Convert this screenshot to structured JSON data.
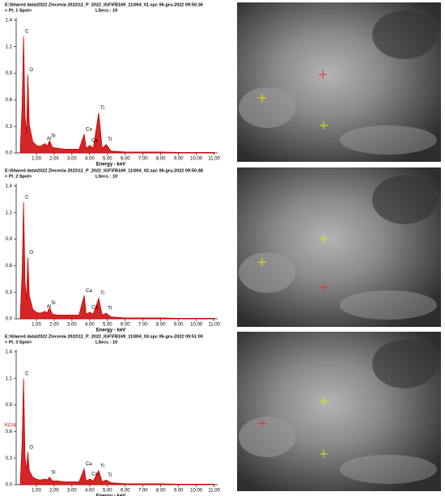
{
  "chart_data": [
    {
      "type": "line",
      "header": "E:\\Shared data\\2022 Zlecenia 2022\\11_P_2022_IGF\\FB169_11\\004_01.spc   06-gru-2022 09:50:36",
      "subheader": "< Pt. 1 Spot>",
      "lsecs": "LSecs : 10",
      "xlabel": "Energy - keV",
      "color": "#cc0000",
      "xlim": [
        0,
        11.2
      ],
      "ylim": [
        0,
        1.45
      ],
      "xticks": [
        {
          "value": 1,
          "label": "1.00"
        },
        {
          "value": 2,
          "label": "2.00"
        },
        {
          "value": 3,
          "label": "3.00"
        },
        {
          "value": 4,
          "label": "4.00"
        },
        {
          "value": 5,
          "label": "5.00"
        },
        {
          "value": 6,
          "label": "6.00"
        },
        {
          "value": 7,
          "label": "7.00"
        },
        {
          "value": 8,
          "label": "8.00"
        },
        {
          "value": 9,
          "label": "9.00"
        },
        {
          "value": 10,
          "label": "10.00"
        },
        {
          "value": 11,
          "label": "11.00"
        }
      ],
      "yticks": [
        {
          "value": 0,
          "label": "0.0"
        },
        {
          "value": 0.285,
          "label": "0.3"
        },
        {
          "value": 0.57,
          "label": "0.6"
        },
        {
          "value": 0.855,
          "label": "0.9"
        },
        {
          "value": 1.14,
          "label": "1.1"
        },
        {
          "value": 1.425,
          "label": "1.4"
        }
      ],
      "x": [
        0.1,
        0.2,
        0.28,
        0.36,
        0.45,
        0.52,
        0.6,
        0.8,
        1.0,
        1.2,
        1.49,
        1.6,
        1.74,
        1.9,
        2.2,
        2.6,
        3.0,
        3.4,
        3.69,
        3.8,
        4.01,
        4.2,
        4.51,
        4.7,
        4.93,
        5.2,
        6,
        7,
        8,
        9,
        10,
        11
      ],
      "values": [
        0.05,
        0.5,
        1.25,
        0.4,
        0.2,
        0.84,
        0.3,
        0.12,
        0.08,
        0.07,
        0.1,
        0.07,
        0.13,
        0.06,
        0.05,
        0.04,
        0.04,
        0.04,
        0.2,
        0.05,
        0.08,
        0.05,
        0.43,
        0.05,
        0.09,
        0.02,
        0.01,
        0.01,
        0.01,
        0.005,
        0.005,
        0.005
      ],
      "annotations": [
        {
          "text": "C",
          "x": 0.28
        },
        {
          "text": "O",
          "x": 0.52
        },
        {
          "text": "Al",
          "x": 1.49
        },
        {
          "text": "Si",
          "x": 1.74
        },
        {
          "text": "Ca",
          "x": 3.69
        },
        {
          "text": "Ca",
          "x": 4.01
        },
        {
          "text": "Ti",
          "x": 4.51
        },
        {
          "text": "Ti",
          "x": 4.93
        }
      ]
    },
    {
      "type": "line",
      "header": "E:\\Shared data\\2022 Zlecenia 2022\\11_P_2022_IGF\\FB169_11\\004_02.spc   06-gru-2022 09:50:48",
      "subheader": "< Pt. 2 Spot>",
      "lsecs": "LSecs : 10",
      "xlabel": "Energy - keV",
      "color": "#cc0000",
      "xlim": [
        0,
        11.2
      ],
      "ylim": [
        0,
        1.45
      ],
      "xticks": [
        {
          "value": 1,
          "label": "1.00"
        },
        {
          "value": 2,
          "label": "2.00"
        },
        {
          "value": 3,
          "label": "3.00"
        },
        {
          "value": 4,
          "label": "4.00"
        },
        {
          "value": 5,
          "label": "5.00"
        },
        {
          "value": 6,
          "label": "6.00"
        },
        {
          "value": 7,
          "label": "7.00"
        },
        {
          "value": 8,
          "label": "8.00"
        },
        {
          "value": 9,
          "label": "9.00"
        },
        {
          "value": 10,
          "label": "10.00"
        },
        {
          "value": 11,
          "label": "11.00"
        }
      ],
      "yticks": [
        {
          "value": 0,
          "label": "0.0"
        },
        {
          "value": 0.285,
          "label": "0.3"
        },
        {
          "value": 0.57,
          "label": "0.6"
        },
        {
          "value": 0.855,
          "label": "0.9"
        },
        {
          "value": 1.14,
          "label": "1.1"
        },
        {
          "value": 1.425,
          "label": "1.4"
        }
      ],
      "x": [
        0.1,
        0.2,
        0.28,
        0.36,
        0.45,
        0.52,
        0.6,
        0.8,
        1.0,
        1.2,
        1.49,
        1.6,
        1.74,
        1.9,
        2.2,
        2.6,
        3.0,
        3.4,
        3.69,
        3.8,
        4.01,
        4.2,
        4.51,
        4.7,
        4.93,
        5.2,
        6,
        7,
        8,
        9,
        10,
        11
      ],
      "values": [
        0.05,
        0.5,
        1.25,
        0.4,
        0.2,
        0.66,
        0.25,
        0.1,
        0.07,
        0.06,
        0.08,
        0.06,
        0.12,
        0.05,
        0.04,
        0.04,
        0.04,
        0.04,
        0.25,
        0.05,
        0.07,
        0.05,
        0.22,
        0.04,
        0.06,
        0.02,
        0.01,
        0.01,
        0.01,
        0.005,
        0.005,
        0.005
      ],
      "annotations": [
        {
          "text": "C",
          "x": 0.28
        },
        {
          "text": "O",
          "x": 0.52
        },
        {
          "text": "Al",
          "x": 1.49
        },
        {
          "text": "Si",
          "x": 1.74
        },
        {
          "text": "Ca",
          "x": 3.69
        },
        {
          "text": "Ca",
          "x": 4.01
        },
        {
          "text": "Ti",
          "x": 4.51
        },
        {
          "text": "Ti",
          "x": 4.93
        }
      ]
    },
    {
      "type": "line",
      "header": "E:\\Shared data\\2022 Zlecenia 2022\\11_P_2022_IGF\\FB169_11\\004_03.spc   06-gru-2022 09:51:00",
      "subheader": "< Pt. 3 Spot>",
      "lsecs": "LSecs : 10",
      "xlabel": "Energy - keV",
      "ylabel": "KCnt",
      "color": "#cc0000",
      "xlim": [
        0,
        11.2
      ],
      "ylim": [
        0,
        1.45
      ],
      "xticks": [
        {
          "value": 1,
          "label": "1.00"
        },
        {
          "value": 2,
          "label": "2.00"
        },
        {
          "value": 3,
          "label": "3.00"
        },
        {
          "value": 4,
          "label": "4.00"
        },
        {
          "value": 5,
          "label": "5.00"
        },
        {
          "value": 6,
          "label": "6.00"
        },
        {
          "value": 7,
          "label": "7.00"
        },
        {
          "value": 8,
          "label": "8.00"
        },
        {
          "value": 9,
          "label": "9.00"
        },
        {
          "value": 10,
          "label": "10.00"
        },
        {
          "value": 11,
          "label": "11.00"
        }
      ],
      "yticks": [
        {
          "value": 0,
          "label": "0.0"
        },
        {
          "value": 0.285,
          "label": "0.3"
        },
        {
          "value": 0.57,
          "label": "0.6"
        },
        {
          "value": 0.855,
          "label": "0.9"
        },
        {
          "value": 1.14,
          "label": "1.1"
        },
        {
          "value": 1.425,
          "label": "1.4"
        }
      ],
      "x": [
        0.1,
        0.2,
        0.28,
        0.36,
        0.45,
        0.52,
        0.6,
        0.8,
        1.0,
        1.2,
        1.49,
        1.6,
        1.74,
        1.9,
        2.2,
        2.6,
        3.0,
        3.4,
        3.69,
        3.8,
        4.01,
        4.2,
        4.51,
        4.7,
        4.93,
        5.2,
        6,
        7,
        8,
        9,
        10,
        11
      ],
      "values": [
        0.05,
        0.45,
        1.14,
        0.3,
        0.15,
        0.35,
        0.15,
        0.08,
        0.06,
        0.05,
        0.06,
        0.05,
        0.08,
        0.04,
        0.04,
        0.03,
        0.03,
        0.03,
        0.17,
        0.04,
        0.06,
        0.04,
        0.15,
        0.03,
        0.05,
        0.02,
        0.01,
        0.01,
        0.01,
        0.005,
        0.005,
        0.005
      ],
      "annotations": [
        {
          "text": "C",
          "x": 0.28
        },
        {
          "text": "O",
          "x": 0.52
        },
        {
          "text": "Si",
          "x": 1.74
        },
        {
          "text": "Ca",
          "x": 3.69
        },
        {
          "text": "Ca",
          "x": 4.01
        },
        {
          "text": "Ti",
          "x": 4.51
        },
        {
          "text": "Ti",
          "x": 4.93
        }
      ]
    }
  ]
}
